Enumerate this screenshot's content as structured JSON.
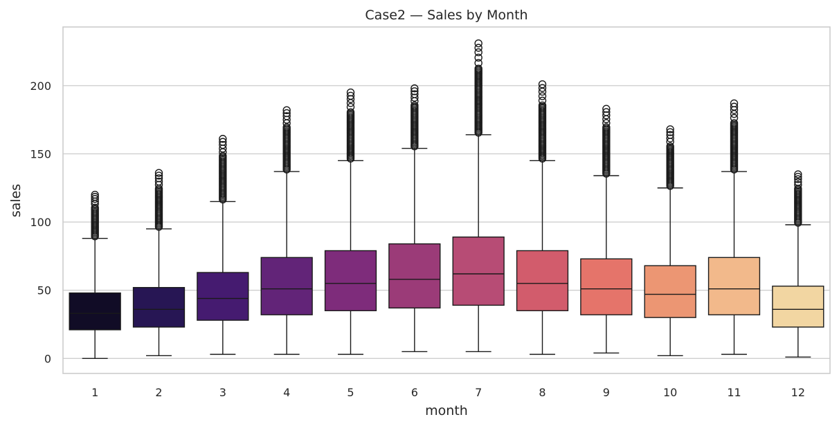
{
  "chart_data": {
    "type": "box",
    "title": "Case2 — Sales by Month",
    "xlabel": "month",
    "ylabel": "sales",
    "categories": [
      "1",
      "2",
      "3",
      "4",
      "5",
      "6",
      "7",
      "8",
      "9",
      "10",
      "11",
      "12"
    ],
    "ylim": [
      -11,
      243
    ],
    "yticks": [
      0,
      50,
      100,
      150,
      200
    ],
    "grid": true,
    "boxes": [
      {
        "category": "1",
        "min": 0,
        "q1": 21,
        "median": 33,
        "q3": 48,
        "max": 88,
        "outlier_max": 120,
        "color": "#110c26"
      },
      {
        "category": "2",
        "min": 2,
        "q1": 23,
        "median": 36,
        "q3": 52,
        "max": 95,
        "outlier_max": 136,
        "color": "#271654"
      },
      {
        "category": "3",
        "min": 3,
        "q1": 28,
        "median": 44,
        "q3": 63,
        "max": 115,
        "outlier_max": 161,
        "color": "#451b70"
      },
      {
        "category": "4",
        "min": 3,
        "q1": 32,
        "median": 51,
        "q3": 74,
        "max": 137,
        "outlier_max": 182,
        "color": "#622478"
      },
      {
        "category": "5",
        "min": 3,
        "q1": 35,
        "median": 55,
        "q3": 79,
        "max": 145,
        "outlier_max": 195,
        "color": "#7e2c7b"
      },
      {
        "category": "6",
        "min": 5,
        "q1": 37,
        "median": 58,
        "q3": 84,
        "max": 154,
        "outlier_max": 198,
        "color": "#9b3b78"
      },
      {
        "category": "7",
        "min": 5,
        "q1": 39,
        "median": 62,
        "q3": 89,
        "max": 164,
        "outlier_max": 231,
        "color": "#b74c75"
      },
      {
        "category": "8",
        "min": 3,
        "q1": 35,
        "median": 55,
        "q3": 79,
        "max": 145,
        "outlier_max": 201,
        "color": "#d25c6c"
      },
      {
        "category": "9",
        "min": 4,
        "q1": 32,
        "median": 51,
        "q3": 73,
        "max": 134,
        "outlier_max": 183,
        "color": "#e5746a"
      },
      {
        "category": "10",
        "min": 2,
        "q1": 30,
        "median": 47,
        "q3": 68,
        "max": 125,
        "outlier_max": 168,
        "color": "#ec9673"
      },
      {
        "category": "11",
        "min": 3,
        "q1": 32,
        "median": 51,
        "q3": 74,
        "max": 137,
        "outlier_max": 187,
        "color": "#f2b98b"
      },
      {
        "category": "12",
        "min": 1,
        "q1": 23,
        "median": 36,
        "q3": 53,
        "max": 98,
        "outlier_max": 135,
        "color": "#f2d6a2"
      }
    ]
  },
  "style": {
    "grid_color": "#cfcfcf",
    "frame_color": "#cccccc",
    "line_color": "#1a1a1a"
  }
}
